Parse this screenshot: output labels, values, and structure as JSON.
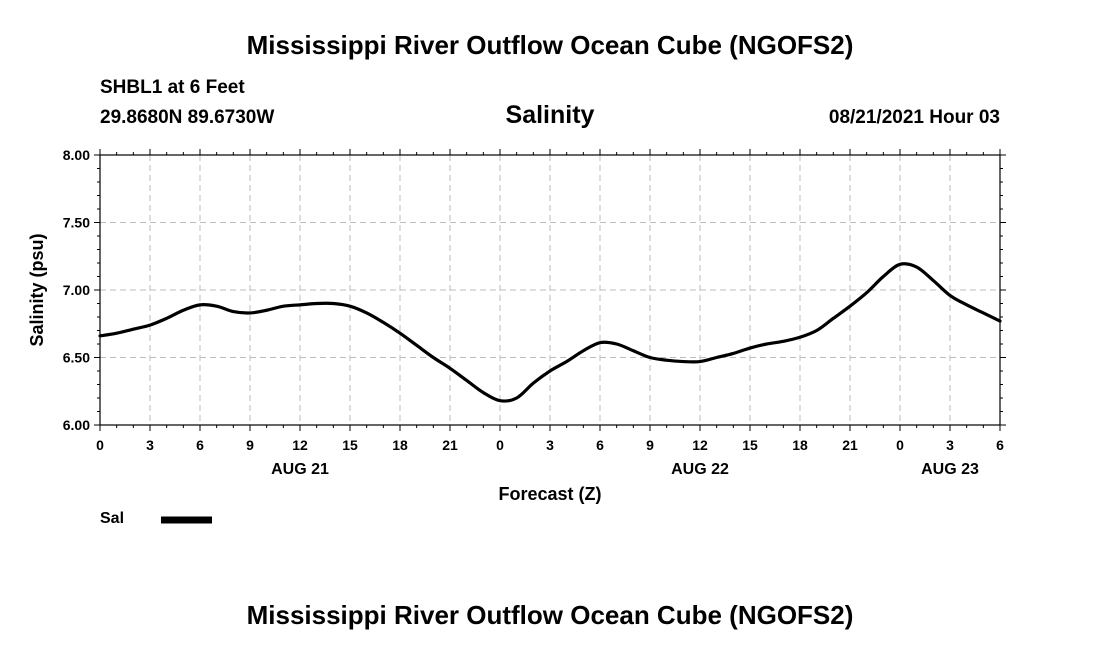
{
  "header": {
    "title": "Mississippi River Outflow Ocean Cube (NGOFS2)",
    "station": "SHBL1 at 6 Feet",
    "coordinates": "29.8680N  89.6730W",
    "variable": "Salinity",
    "datetime": "08/21/2021 Hour 03"
  },
  "footer": {
    "title": "Mississippi River Outflow Ocean Cube (NGOFS2)"
  },
  "legend": {
    "label": "Sal",
    "color": "#000000"
  },
  "chart_data": {
    "type": "line",
    "title": "Salinity",
    "xlabel": "Forecast (Z)",
    "ylabel": "Salinity (psu)",
    "xlim": [
      0,
      54
    ],
    "ylim": [
      6.0,
      8.0
    ],
    "grid": true,
    "x_ticks": [
      0,
      3,
      6,
      9,
      12,
      15,
      18,
      21,
      24,
      27,
      30,
      33,
      36,
      39,
      42,
      45,
      48,
      51,
      54
    ],
    "x_tick_labels": [
      "0",
      "3",
      "6",
      "9",
      "12",
      "15",
      "18",
      "21",
      "0",
      "3",
      "6",
      "9",
      "12",
      "15",
      "18",
      "21",
      "0",
      "3",
      "6"
    ],
    "y_ticks": [
      6.0,
      6.5,
      7.0,
      7.5,
      8.0
    ],
    "y_tick_labels": [
      "6.00",
      "6.50",
      "7.00",
      "7.50",
      "8.00"
    ],
    "date_labels": [
      {
        "x": 12,
        "label": "AUG 21"
      },
      {
        "x": 36,
        "label": "AUG 22"
      },
      {
        "x": 51,
        "label": "AUG 23"
      }
    ],
    "series": [
      {
        "name": "Sal",
        "x": [
          0,
          1,
          2,
          3,
          4,
          5,
          6,
          7,
          8,
          9,
          10,
          11,
          12,
          13,
          14,
          15,
          16,
          17,
          18,
          19,
          20,
          21,
          22,
          23,
          24,
          25,
          26,
          27,
          28,
          29,
          30,
          31,
          32,
          33,
          34,
          35,
          36,
          37,
          38,
          39,
          40,
          41,
          42,
          43,
          44,
          45,
          46,
          47,
          48,
          49,
          50,
          51,
          52,
          53,
          54
        ],
        "values": [
          6.66,
          6.68,
          6.71,
          6.74,
          6.79,
          6.85,
          6.89,
          6.88,
          6.84,
          6.83,
          6.85,
          6.88,
          6.89,
          6.9,
          6.9,
          6.88,
          6.83,
          6.76,
          6.68,
          6.59,
          6.5,
          6.42,
          6.33,
          6.24,
          6.18,
          6.2,
          6.31,
          6.4,
          6.47,
          6.55,
          6.61,
          6.6,
          6.55,
          6.5,
          6.48,
          6.47,
          6.47,
          6.5,
          6.53,
          6.57,
          6.6,
          6.62,
          6.65,
          6.7,
          6.79,
          6.88,
          6.98,
          7.1,
          7.19,
          7.17,
          7.07,
          6.96,
          6.89,
          6.83,
          6.77
        ]
      }
    ]
  }
}
